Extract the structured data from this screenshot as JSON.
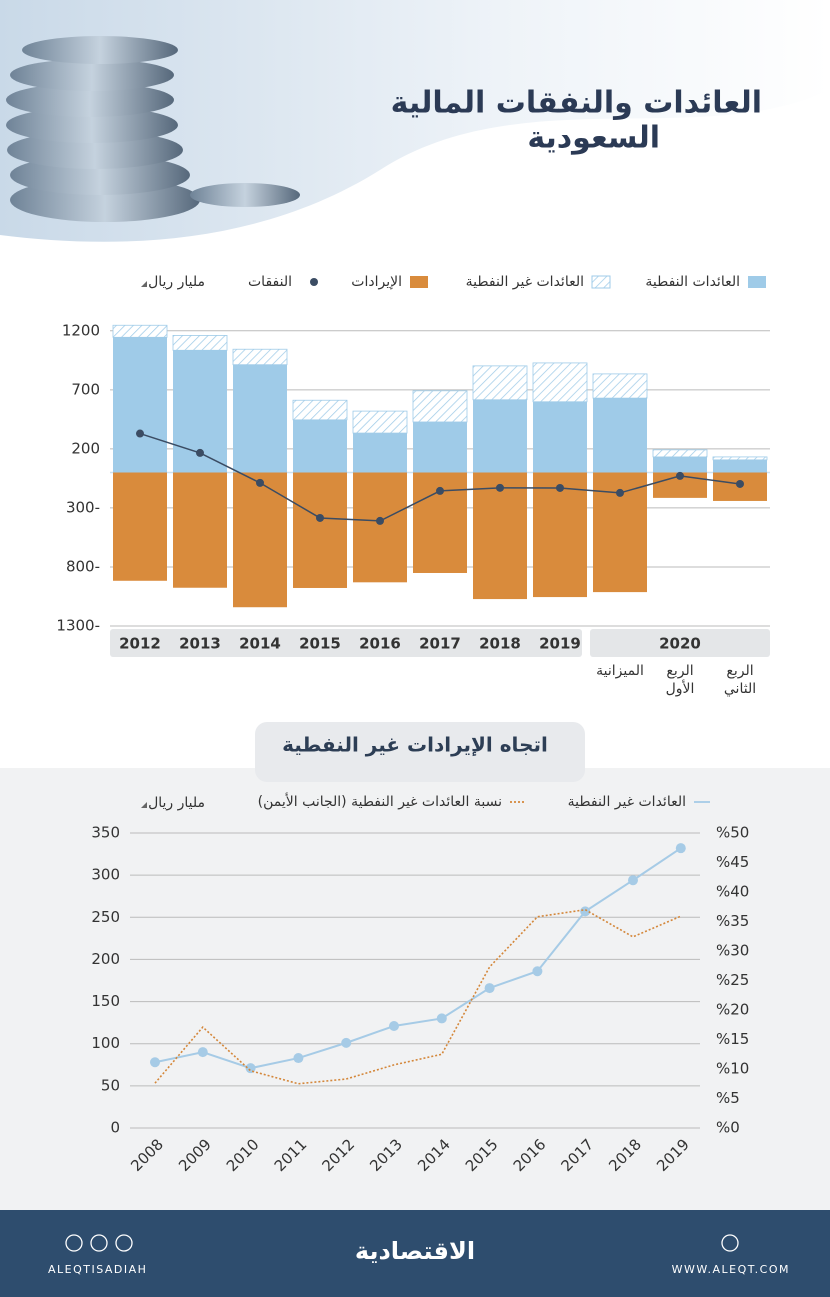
{
  "header": {
    "title": [
      "العائدات والنفقات المالية",
      "السعودية"
    ]
  },
  "chart_data": [
    {
      "type": "bar",
      "unit": "مليار ريال",
      "group_label": "2020",
      "categories": [
        "2012",
        "2013",
        "2014",
        "2015",
        "2016",
        "2017",
        "2018",
        "2019",
        "الميزانية",
        "الربع الأول",
        "الربع الثاني"
      ],
      "series": [
        {
          "name": "العائدات النفطية",
          "color": "#9fcbe8",
          "values": [
            1145,
            1035,
            913,
            446,
            334,
            428,
            616,
            599,
            630,
            132,
            107
          ]
        },
        {
          "name": "العائدات غير النفطية",
          "color": "#9fcbe8",
          "pattern": "hatch",
          "values": [
            102,
            126,
            131,
            166,
            186,
            264,
            287,
            329,
            205,
            60,
            25
          ]
        },
        {
          "name": "الإيرادات",
          "color": "#d98b3c",
          "values": [
            -917,
            -976,
            -1141,
            -978,
            -930,
            -851,
            -1072,
            -1055,
            -1013,
            -215,
            -241
          ]
        },
        {
          "name": "النفقات",
          "color": "#3b4c63",
          "type": "line",
          "values": [
            330,
            166,
            -88,
            -385,
            -410,
            -156,
            -130,
            -131,
            -173,
            -29,
            -97
          ]
        }
      ],
      "ylim": [
        -1300,
        1300
      ],
      "yticks": [
        1200,
        700,
        200,
        {
          "value": -300,
          "label": "300-"
        },
        {
          "value": -800,
          "label": "800-"
        },
        {
          "value": -1300,
          "label": "1300-"
        }
      ],
      "grid": true
    },
    {
      "type": "line",
      "title": "اتجاه الإيرادات غير النفطية",
      "unit": "مليار ريال",
      "categories": [
        "2008",
        "2009",
        "2010",
        "2011",
        "2012",
        "2013",
        "2014",
        "2015",
        "2016",
        "2017",
        "2018",
        "2019"
      ],
      "series": [
        {
          "name": "العائدات غير النفطية",
          "color": "#a6cbe6",
          "marker": true,
          "values": [
            78,
            90,
            71,
            83,
            101,
            121,
            130,
            166,
            186,
            257,
            294,
            332
          ]
        },
        {
          "name": "نسبة العائدات غير النفطية (الجانب الأيمن)",
          "color": "#d4873a",
          "dash": "dotted",
          "axis": "y2",
          "values": [
            7.6,
            17.1,
            9.7,
            7.5,
            8.3,
            10.7,
            12.5,
            27.3,
            35.8,
            37,
            32.4,
            35.9
          ]
        }
      ],
      "ylim": [
        0,
        350
      ],
      "yticks": [
        0,
        50,
        100,
        150,
        200,
        250,
        300,
        350
      ],
      "y2lim": [
        0,
        50
      ],
      "y2ticks": [
        {
          "value": 0,
          "label": "%0"
        },
        {
          "value": 5,
          "label": "%5"
        },
        {
          "value": 10,
          "label": "%10"
        },
        {
          "value": 15,
          "label": "%15"
        },
        {
          "value": 20,
          "label": "%20"
        },
        {
          "value": 25,
          "label": "%25"
        },
        {
          "value": 30,
          "label": "%30"
        },
        {
          "value": 35,
          "label": "%35"
        },
        {
          "value": 40,
          "label": "%40"
        },
        {
          "value": 45,
          "label": "%45"
        },
        {
          "value": 50,
          "label": "%50"
        }
      ],
      "grid": true
    }
  ],
  "footer": {
    "handle": "ALEQTISADIAH",
    "logo": "الاقتصادية",
    "website": "WWW.ALEQT.COM"
  }
}
